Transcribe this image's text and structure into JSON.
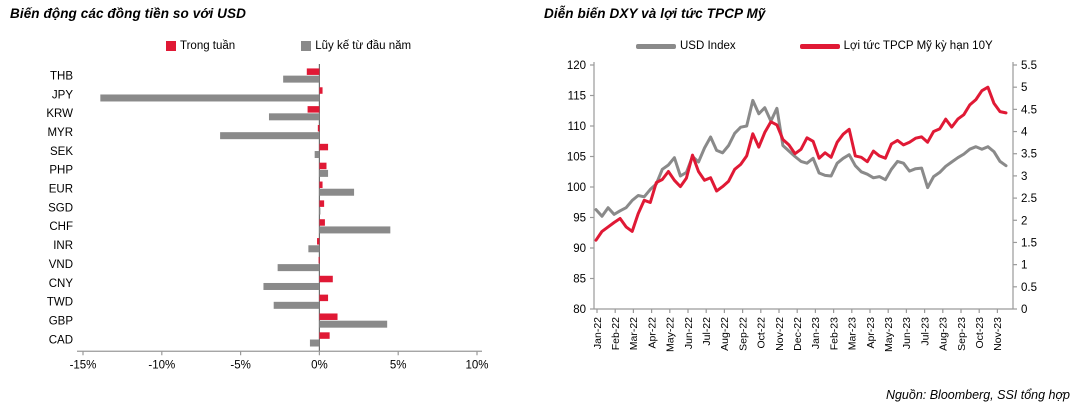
{
  "footer": {
    "text": "Nguồn: Bloomberg, SSI tổng hợp"
  },
  "colors": {
    "red": "#e01935",
    "gray": "#8a8a8a",
    "axis": "#9a9a9a",
    "zero_line": "#6e6e6e",
    "text": "#000000"
  },
  "chart_data": [
    {
      "type": "bar",
      "orientation": "horizontal",
      "title": "Biến động các đồng tiền so với USD",
      "legend": [
        {
          "label": "Trong tuần",
          "color": "#e01935",
          "shape": "square"
        },
        {
          "label": "Lũy kế từ đầu năm",
          "color": "#8a8a8a",
          "shape": "square"
        }
      ],
      "categories": [
        "THB",
        "JPY",
        "KRW",
        "MYR",
        "SEK",
        "PHP",
        "EUR",
        "SGD",
        "CHF",
        "INR",
        "VND",
        "CNY",
        "TWD",
        "GBP",
        "CAD"
      ],
      "series": [
        {
          "name": "Trong tuần",
          "color": "#e01935",
          "values": [
            -0.8,
            0.2,
            -0.75,
            -0.1,
            0.55,
            0.45,
            0.2,
            0.3,
            0.35,
            -0.15,
            -0.05,
            0.85,
            0.55,
            1.15,
            0.65
          ]
        },
        {
          "name": "Lũy kế từ đầu năm",
          "color": "#8a8a8a",
          "values": [
            -2.3,
            -13.9,
            -3.2,
            -6.3,
            -0.3,
            0.55,
            2.2,
            0.05,
            4.5,
            -0.7,
            -2.65,
            -3.55,
            -2.9,
            4.3,
            -0.6
          ]
        }
      ],
      "xlim": [
        -15,
        10
      ],
      "xtick_values": [
        -15,
        -10,
        -5,
        0,
        5,
        10
      ],
      "xtick_labels": [
        "-15%",
        "-10%",
        "-5%",
        "0%",
        "5%",
        "10%"
      ],
      "grid": false,
      "legend_position": "top"
    },
    {
      "type": "line",
      "title": "Diễn biến DXY và lợi tức TPCP Mỹ",
      "legend": [
        {
          "label": "USD Index",
          "color": "#8a8a8a",
          "shape": "line"
        },
        {
          "label": "Lợi tức TPCP Mỹ kỳ hạn 10Y",
          "color": "#e01935",
          "shape": "line"
        }
      ],
      "x_labels": [
        "Jan-22",
        "Feb-22",
        "Mar-22",
        "Apr-22",
        "May-22",
        "Jun-22",
        "Jul-22",
        "Aug-22",
        "Sep-22",
        "Oct-22",
        "Nov-22",
        "Dec-22",
        "Jan-23",
        "Feb-23",
        "Mar-23",
        "Apr-23",
        "May-23",
        "Jun-23",
        "Jul-23",
        "Aug-23",
        "Sep-23",
        "Oct-23",
        "Nov-23"
      ],
      "points_per_month": 3,
      "y_left": {
        "min": 80,
        "max": 120,
        "ticks": [
          "120",
          "115",
          "110",
          "105",
          "100",
          "95",
          "90",
          "85",
          "80"
        ]
      },
      "y_right": {
        "min": 0,
        "max": 5.5,
        "ticks": [
          "5.5",
          "5",
          "4.5",
          "4",
          "3.5",
          "3",
          "2.5",
          "2",
          "1.5",
          "1",
          "0.5",
          "0"
        ]
      },
      "grid": false,
      "legend_position": "top",
      "series": [
        {
          "name": "USD Index",
          "axis": "left",
          "color": "#8a8a8a",
          "values": [
            96.3,
            95.2,
            96.6,
            95.5,
            96.1,
            96.6,
            97.8,
            98.6,
            98.4,
            99.6,
            100.5,
            102.9,
            103.6,
            104.8,
            101.8,
            102.4,
            105.0,
            104.1,
            106.4,
            108.2,
            106.0,
            105.6,
            106.8,
            108.8,
            109.8,
            110.0,
            114.2,
            112.0,
            113.0,
            110.8,
            112.9,
            106.8,
            105.9,
            105.0,
            104.2,
            103.9,
            104.7,
            102.3,
            101.9,
            101.8,
            103.9,
            104.7,
            105.3,
            103.5,
            102.5,
            102.1,
            101.5,
            101.7,
            101.2,
            102.9,
            104.2,
            103.9,
            102.6,
            103.0,
            103.1,
            99.9,
            101.7,
            102.4,
            103.4,
            104.1,
            104.8,
            105.4,
            106.2,
            106.6,
            106.2,
            106.6,
            105.8,
            104.2,
            103.5
          ]
        },
        {
          "name": "Lợi tức TPCP Mỹ kỳ hạn 10Y",
          "axis": "right",
          "color": "#e01935",
          "values": [
            1.55,
            1.75,
            1.85,
            1.95,
            2.04,
            1.85,
            1.75,
            2.15,
            2.45,
            2.4,
            2.85,
            2.92,
            3.1,
            2.9,
            2.76,
            2.95,
            3.47,
            3.1,
            2.9,
            2.96,
            2.66,
            2.76,
            2.88,
            3.15,
            3.26,
            3.45,
            3.95,
            3.65,
            3.98,
            4.22,
            4.15,
            3.82,
            3.7,
            3.5,
            3.6,
            3.86,
            3.78,
            3.4,
            3.52,
            3.42,
            3.76,
            3.94,
            4.05,
            3.45,
            3.42,
            3.32,
            3.56,
            3.45,
            3.4,
            3.72,
            3.8,
            3.7,
            3.76,
            3.85,
            3.88,
            3.76,
            4.0,
            4.06,
            4.28,
            4.1,
            4.28,
            4.38,
            4.6,
            4.72,
            4.92,
            5.0,
            4.64,
            4.45,
            4.42
          ]
        }
      ]
    }
  ]
}
